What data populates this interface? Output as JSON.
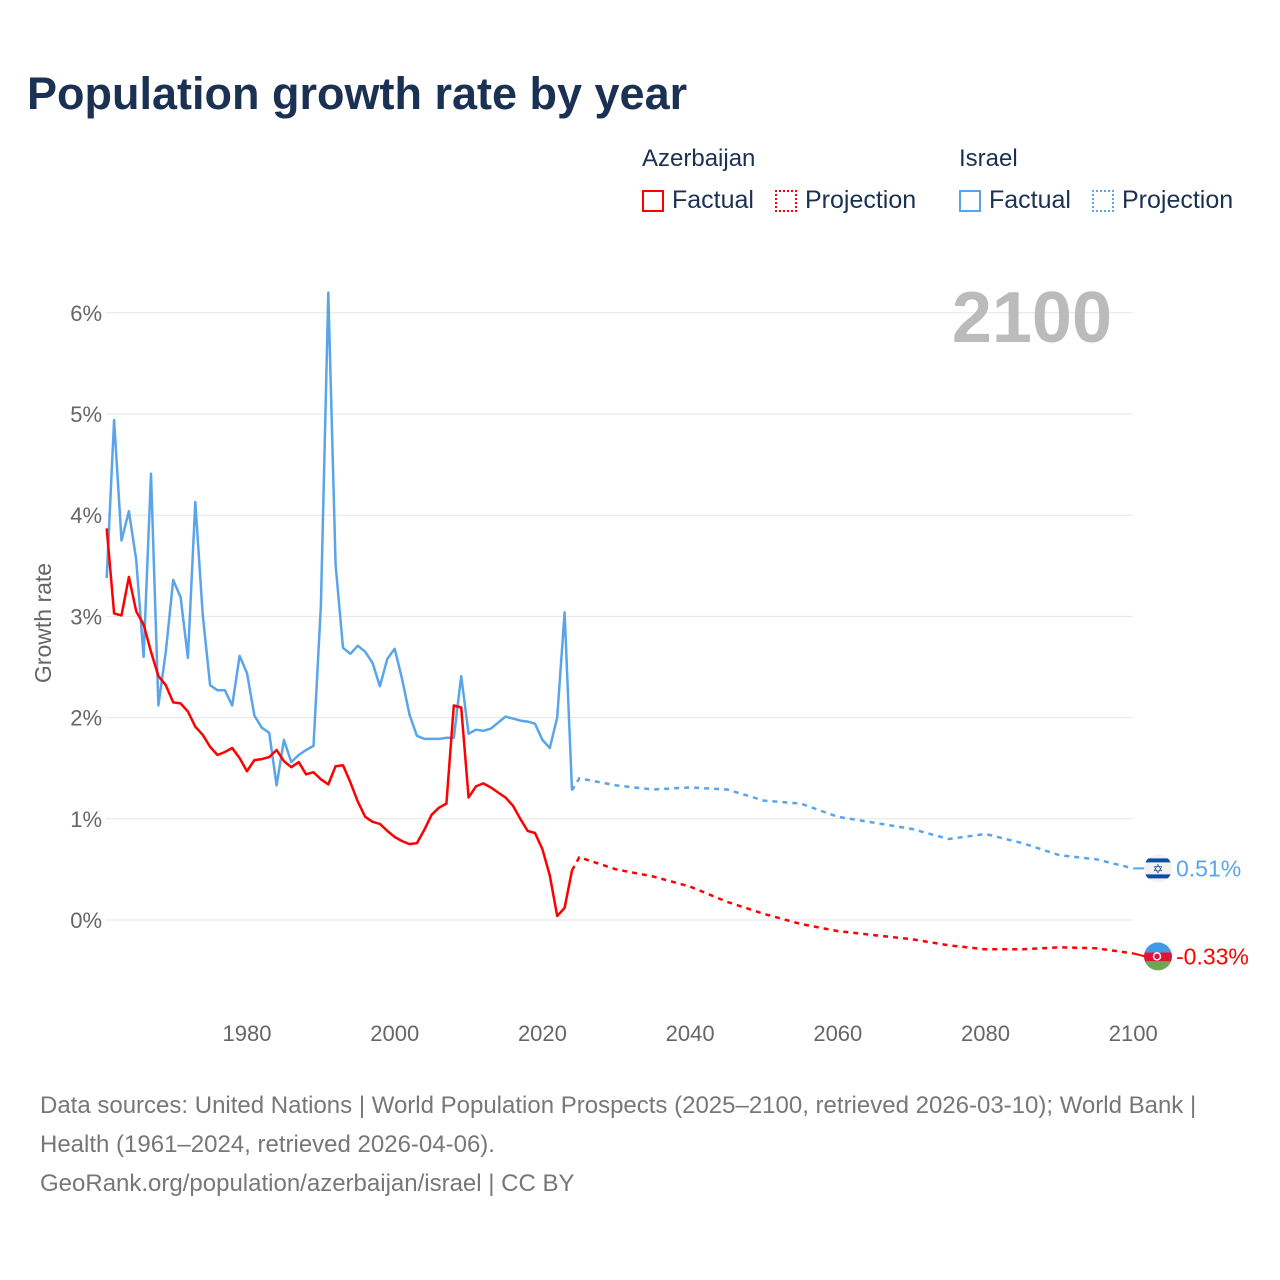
{
  "title": "Population growth rate by year",
  "legend": {
    "groups": [
      {
        "name": "Azerbaijan",
        "factual": "Factual",
        "projection": "Projection",
        "color": "#ff0000"
      },
      {
        "name": "Israel",
        "factual": "Factual",
        "projection": "Projection",
        "color": "#5aa5ea"
      }
    ]
  },
  "footer": {
    "sources": "Data sources: United Nations | World Population Prospects (2025–2100, retrieved 2026-03-10); World Bank | Health (1961–2024, retrieved 2026-04-06).",
    "link": "GeoRank.org/population/azerbaijan/israel | CC BY"
  },
  "chart_data": {
    "type": "line",
    "title": "Population growth rate by year",
    "xlabel": "",
    "ylabel": "Growth rate",
    "year_label": "2100",
    "xlim": [
      1961,
      2100
    ],
    "ylim": [
      -0.9,
      6.6
    ],
    "x_ticks": [
      1980,
      2000,
      2020,
      2040,
      2060,
      2080,
      2100
    ],
    "y_ticks": [
      0,
      1,
      2,
      3,
      4,
      5,
      6
    ],
    "y_tick_labels": [
      "0%",
      "1%",
      "2%",
      "3%",
      "4%",
      "5%",
      "6%"
    ],
    "grid": true,
    "series": [
      {
        "name": "Israel",
        "color": "#5aa5ea",
        "end_label": "0.51%",
        "factual": {
          "start_year": 1961,
          "values": [
            3.38,
            4.94,
            3.75,
            4.04,
            3.56,
            2.6,
            4.41,
            2.12,
            2.65,
            3.36,
            3.19,
            2.59,
            4.13,
            3.02,
            2.32,
            2.27,
            2.27,
            2.12,
            2.61,
            2.44,
            2.02,
            1.9,
            1.85,
            1.33,
            1.78,
            1.56,
            1.63,
            1.68,
            1.72,
            3.11,
            6.2,
            3.51,
            2.69,
            2.63,
            2.71,
            2.65,
            2.54,
            2.31,
            2.58,
            2.68,
            2.38,
            2.03,
            1.82,
            1.79,
            1.79,
            1.79,
            1.8,
            1.8,
            2.41,
            1.84,
            1.88,
            1.87,
            1.89,
            1.95,
            2.01,
            1.99,
            1.97,
            1.96,
            1.94,
            1.78,
            1.7,
            2.0,
            3.04,
            1.28
          ]
        },
        "projection": {
          "x": [
            2024,
            2025,
            2030,
            2035,
            2040,
            2045,
            2050,
            2055,
            2060,
            2065,
            2070,
            2075,
            2080,
            2085,
            2090,
            2095,
            2100
          ],
          "values": [
            1.28,
            1.4,
            1.33,
            1.29,
            1.31,
            1.29,
            1.18,
            1.15,
            1.02,
            0.96,
            0.9,
            0.8,
            0.85,
            0.76,
            0.64,
            0.6,
            0.51
          ]
        }
      },
      {
        "name": "Azerbaijan",
        "color": "#ff0000",
        "end_label": "-0.33%",
        "factual": {
          "start_year": 1961,
          "values": [
            3.87,
            3.03,
            3.01,
            3.39,
            3.05,
            2.92,
            2.65,
            2.41,
            2.32,
            2.15,
            2.14,
            2.06,
            1.91,
            1.83,
            1.71,
            1.63,
            1.66,
            1.7,
            1.6,
            1.47,
            1.58,
            1.59,
            1.61,
            1.68,
            1.57,
            1.51,
            1.56,
            1.44,
            1.46,
            1.39,
            1.34,
            1.52,
            1.53,
            1.36,
            1.17,
            1.02,
            0.97,
            0.95,
            0.88,
            0.82,
            0.78,
            0.75,
            0.76,
            0.89,
            1.04,
            1.11,
            1.15,
            2.12,
            2.1,
            1.21,
            1.32,
            1.35,
            1.31,
            1.26,
            1.21,
            1.13,
            1.0,
            0.88,
            0.86,
            0.7,
            0.44,
            0.04,
            0.12,
            0.49
          ]
        },
        "projection": {
          "x": [
            2024,
            2025,
            2030,
            2035,
            2040,
            2045,
            2050,
            2055,
            2060,
            2065,
            2070,
            2075,
            2080,
            2085,
            2090,
            2095,
            2100
          ],
          "values": [
            0.49,
            0.62,
            0.5,
            0.43,
            0.33,
            0.18,
            0.06,
            -0.04,
            -0.11,
            -0.15,
            -0.19,
            -0.25,
            -0.29,
            -0.29,
            -0.27,
            -0.28,
            -0.33
          ]
        }
      }
    ]
  }
}
